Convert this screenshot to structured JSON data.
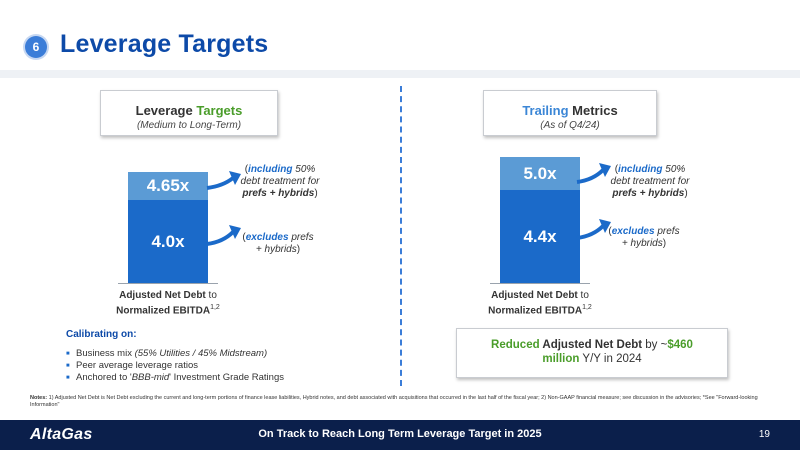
{
  "header": {
    "section_number": "6",
    "title": "Leverage Targets"
  },
  "left_panel": {
    "title_a": "Leverage ",
    "title_b": "Targets",
    "subtitle": "(Medium to Long-Term)",
    "bar_top_label": "4.65x",
    "bar_bottom_label": "4.0x",
    "annot_top_kw": "including",
    "annot_top_1": " 50%",
    "annot_top_2": "debt treatment for",
    "annot_top_3": "prefs + hybrids",
    "annot_bottom_kw": "excludes",
    "annot_bottom_1": " prefs",
    "annot_bottom_2": "+ hybrids",
    "axis_line1_a": "Adjusted Net Debt",
    "axis_line1_b": " to",
    "axis_line2": "Normalized EBITDA",
    "axis_sup": "1,2"
  },
  "right_panel": {
    "title_a": "Trailing",
    "title_b": " Metrics",
    "subtitle": "(As of Q4/24)",
    "bar_top_label": "5.0x",
    "bar_bottom_label": "4.4x",
    "annot_top_kw": "including",
    "annot_top_1": " 50%",
    "annot_top_2": "debt treatment for",
    "annot_top_3": "prefs + hybrids",
    "annot_bottom_kw": "excludes",
    "annot_bottom_1": " prefs",
    "annot_bottom_2": "+ hybrids",
    "axis_line1_a": "Adjusted Net Debt",
    "axis_line1_b": " to",
    "axis_line2": "Normalized EBITDA",
    "axis_sup": "1,2"
  },
  "calibrating": {
    "title": "Calibrating on:",
    "item1_a": "Business mix ",
    "item1_b": "(55% Utilities / 45% Midstream)",
    "item2": "Peer average leverage ratios",
    "item3_a": "Anchored to '",
    "item3_b": "BBB-mid",
    "item3_c": "' Investment Grade Ratings"
  },
  "reduced": {
    "a": "Reduced",
    "b": " Adjusted Net Debt",
    "c": " by ~",
    "d": "$460",
    "e": "million",
    "f": " Y/Y in 2024"
  },
  "notes": {
    "label": "Notes:",
    "text": " 1) Adjusted Net Debt is Net Debt excluding the current and long-term portions of finance lease liabilities, Hybrid notes, and debt associated with acquisitions that occurred in the last half of the fiscal year; 2) Non-GAAP financial measure; see discussion in the advisories; *See \"Forward-looking Information\""
  },
  "footer": {
    "logo": "AltaGas",
    "tagline": "On Track to Reach Long Term Leverage Target in 2025",
    "page": "19"
  },
  "colors": {
    "title_blue": "#0d4aa8",
    "bar_light": "#5b9bd5",
    "bar_dark": "#1b6ac9",
    "accent_green": "#4a9d2a",
    "footer_navy": "#0b1f4b"
  }
}
